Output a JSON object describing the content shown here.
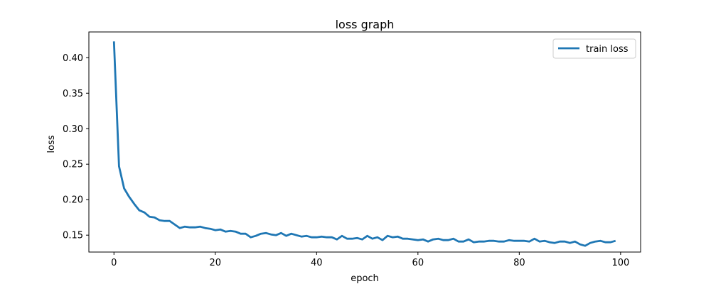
{
  "chart_data": {
    "type": "line",
    "title": "loss graph",
    "xlabel": "epoch",
    "ylabel": "loss",
    "xlim": [
      -4.95,
      103.95
    ],
    "ylim": [
      0.1262,
      0.4363
    ],
    "xticks": [
      0,
      20,
      40,
      60,
      80,
      100
    ],
    "xtick_labels": [
      "0",
      "20",
      "40",
      "60",
      "80",
      "100"
    ],
    "yticks": [
      0.15,
      0.2,
      0.25,
      0.3,
      0.35,
      0.4
    ],
    "ytick_labels": [
      "0.15",
      "0.20",
      "0.25",
      "0.30",
      "0.35",
      "0.40"
    ],
    "grid": false,
    "legend_position": "top-right",
    "series": [
      {
        "name": "train loss",
        "color": "#1f77b4",
        "x": [
          0,
          1,
          2,
          3,
          4,
          5,
          6,
          7,
          8,
          9,
          10,
          11,
          12,
          13,
          14,
          15,
          16,
          17,
          18,
          19,
          20,
          21,
          22,
          23,
          24,
          25,
          26,
          27,
          28,
          29,
          30,
          31,
          32,
          33,
          34,
          35,
          36,
          37,
          38,
          39,
          40,
          41,
          42,
          43,
          44,
          45,
          46,
          47,
          48,
          49,
          50,
          51,
          52,
          53,
          54,
          55,
          56,
          57,
          58,
          59,
          60,
          61,
          62,
          63,
          64,
          65,
          66,
          67,
          68,
          69,
          70,
          71,
          72,
          73,
          74,
          75,
          76,
          77,
          78,
          79,
          80,
          81,
          82,
          83,
          84,
          85,
          86,
          87,
          88,
          89,
          90,
          91,
          92,
          93,
          94,
          95,
          96,
          97,
          98,
          99
        ],
        "y": [
          0.423,
          0.247,
          0.216,
          0.204,
          0.194,
          0.185,
          0.182,
          0.176,
          0.175,
          0.171,
          0.17,
          0.17,
          0.165,
          0.16,
          0.162,
          0.161,
          0.161,
          0.162,
          0.16,
          0.159,
          0.157,
          0.158,
          0.155,
          0.156,
          0.155,
          0.152,
          0.152,
          0.147,
          0.149,
          0.152,
          0.153,
          0.151,
          0.15,
          0.153,
          0.149,
          0.152,
          0.15,
          0.148,
          0.149,
          0.147,
          0.147,
          0.148,
          0.147,
          0.147,
          0.144,
          0.149,
          0.145,
          0.145,
          0.146,
          0.144,
          0.149,
          0.145,
          0.147,
          0.143,
          0.149,
          0.147,
          0.148,
          0.145,
          0.145,
          0.144,
          0.143,
          0.144,
          0.141,
          0.144,
          0.145,
          0.143,
          0.143,
          0.145,
          0.141,
          0.141,
          0.144,
          0.14,
          0.141,
          0.141,
          0.142,
          0.142,
          0.141,
          0.141,
          0.143,
          0.142,
          0.142,
          0.142,
          0.141,
          0.145,
          0.141,
          0.142,
          0.14,
          0.139,
          0.141,
          0.141,
          0.139,
          0.141,
          0.137,
          0.135,
          0.139,
          0.141,
          0.142,
          0.14,
          0.14,
          0.142
        ]
      }
    ]
  }
}
